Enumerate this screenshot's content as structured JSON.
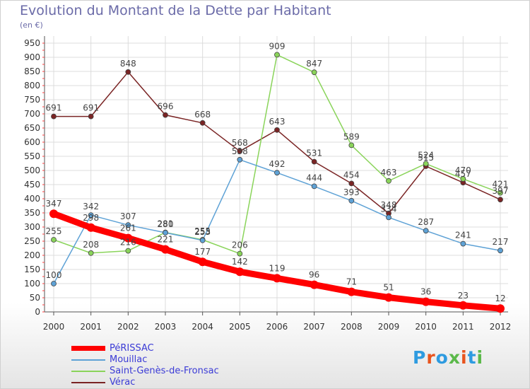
{
  "header": {
    "title": "Evolution du Montant de la Dette par Habitant",
    "subtitle": "(en €)"
  },
  "logo": {
    "text": "Proxiti",
    "colors": [
      "#2e9be0",
      "#e8541e",
      "#2e9be0",
      "#5bb94a",
      "#e8541e",
      "#2e9be0",
      "#5bb94a"
    ]
  },
  "chart_data": {
    "type": "line",
    "title": "Evolution du Montant de la Dette par Habitant",
    "subtitle": "(en €)",
    "x": [
      "2000",
      "2001",
      "2002",
      "2003",
      "2004",
      "2005",
      "2006",
      "2007",
      "2008",
      "2009",
      "2010",
      "2011",
      "2012"
    ],
    "ylim": [
      0,
      950
    ],
    "yticks": [
      0,
      50,
      100,
      150,
      200,
      250,
      300,
      350,
      400,
      450,
      500,
      550,
      600,
      650,
      700,
      750,
      800,
      850,
      900,
      950
    ],
    "grid": true,
    "legend_position": "bottom-left",
    "series": [
      {
        "name": "PéRISSAC",
        "color": "#ff0000",
        "values": [
          347,
          298,
          261,
          221,
          177,
          142,
          119,
          96,
          71,
          51,
          36,
          23,
          12
        ]
      },
      {
        "name": "Mouillac",
        "color": "#5ea2d6",
        "values": [
          100,
          342,
          307,
          280,
          253,
          538,
          492,
          444,
          393,
          334,
          287,
          241,
          217
        ]
      },
      {
        "name": "Saint-Genès-de-Fronsac",
        "color": "#8ad45a",
        "values": [
          255,
          208,
          216,
          281,
          255,
          206,
          909,
          847,
          589,
          463,
          524,
          470,
          421
        ]
      },
      {
        "name": "Vérac",
        "color": "#7a2424",
        "values": [
          691,
          691,
          848,
          696,
          668,
          568,
          643,
          531,
          454,
          348,
          515,
          457,
          397
        ]
      }
    ]
  }
}
